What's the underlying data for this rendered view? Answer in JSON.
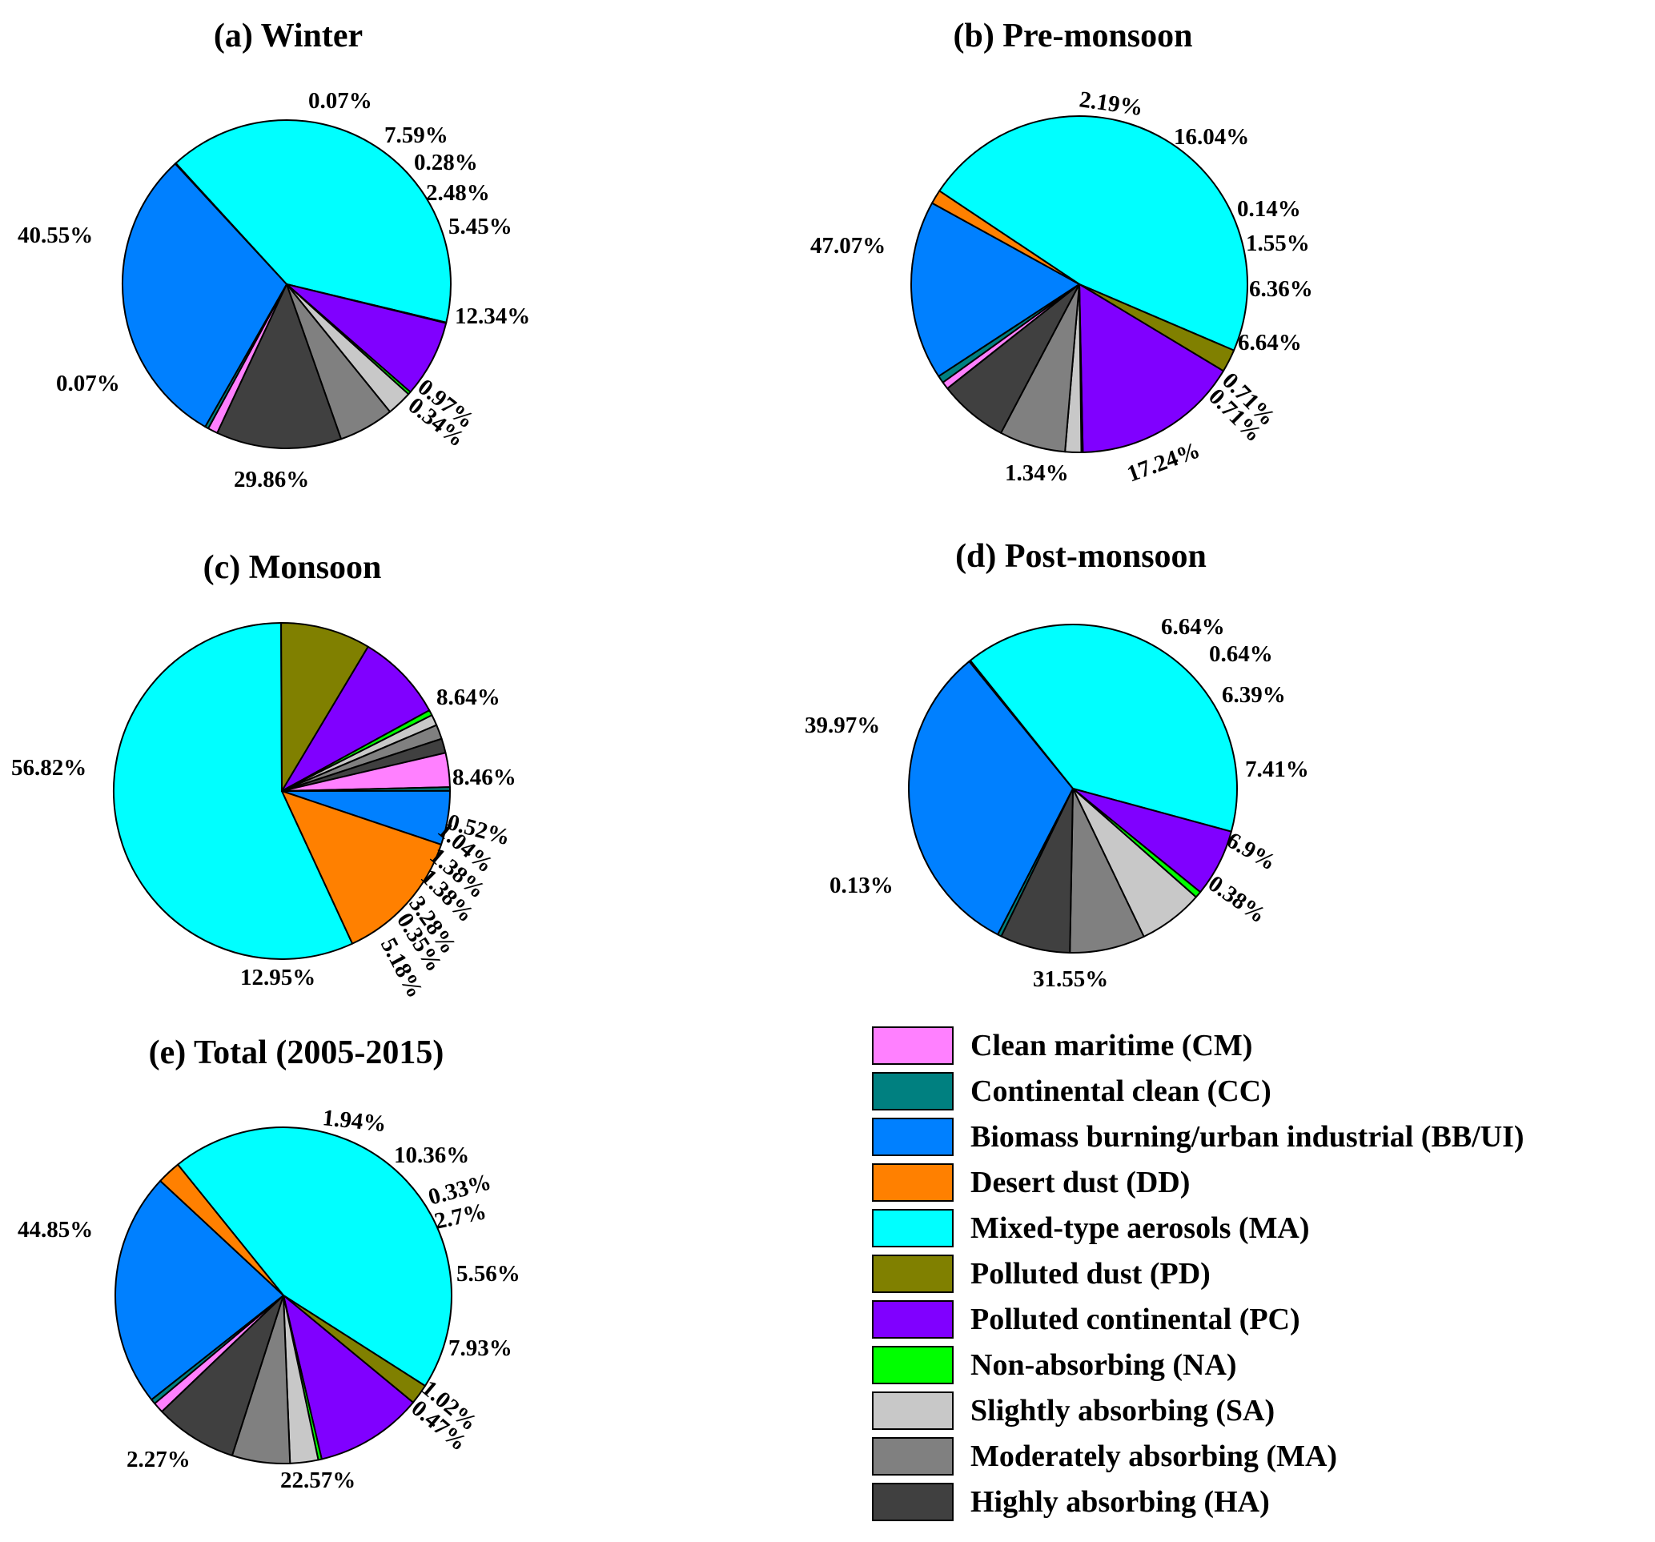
{
  "chart_data": [
    {
      "type": "pie",
      "title": "(a) Winter",
      "slices": [
        {
          "category": "MA",
          "value": 40.55,
          "label": "40.55%"
        },
        {
          "category": "PD",
          "value": 0.07,
          "label": "0.07%"
        },
        {
          "category": "PC",
          "value": 7.59,
          "label": "7.59%"
        },
        {
          "category": "NA",
          "value": 0.28,
          "label": "0.28%"
        },
        {
          "category": "SA",
          "value": 2.48,
          "label": "2.48%"
        },
        {
          "category": "MAbs",
          "value": 5.45,
          "label": "5.45%"
        },
        {
          "category": "HA",
          "value": 12.34,
          "label": "12.34%"
        },
        {
          "category": "CM",
          "value": 0.97,
          "label": "0.97%"
        },
        {
          "category": "CC",
          "value": 0.34,
          "label": "0.34%"
        },
        {
          "category": "BB",
          "value": 29.86,
          "label": "29.86%"
        },
        {
          "category": "DD",
          "value": 0.07,
          "label": "0.07%"
        }
      ]
    },
    {
      "type": "pie",
      "title": "(b) Pre-monsoon",
      "slices": [
        {
          "category": "MA",
          "value": 47.07,
          "label": "47.07%"
        },
        {
          "category": "PD",
          "value": 2.19,
          "label": "2.19%"
        },
        {
          "category": "PC",
          "value": 16.04,
          "label": "16.04%"
        },
        {
          "category": "NA",
          "value": 0.14,
          "label": "0.14%"
        },
        {
          "category": "SA",
          "value": 1.55,
          "label": "1.55%"
        },
        {
          "category": "MAbs",
          "value": 6.36,
          "label": "6.36%"
        },
        {
          "category": "HA",
          "value": 6.64,
          "label": "6.64%"
        },
        {
          "category": "CM",
          "value": 0.71,
          "label": "0.71%"
        },
        {
          "category": "CC",
          "value": 0.71,
          "label": "0.71%"
        },
        {
          "category": "BB",
          "value": 17.24,
          "label": "17.24%"
        },
        {
          "category": "DD",
          "value": 1.34,
          "label": "1.34%"
        }
      ]
    },
    {
      "type": "pie",
      "title": "(c) Monsoon",
      "slices": [
        {
          "category": "MA",
          "value": 56.82,
          "label": "56.82%"
        },
        {
          "category": "PD",
          "value": 8.64,
          "label": "8.64%"
        },
        {
          "category": "PC",
          "value": 8.46,
          "label": "8.46%"
        },
        {
          "category": "NA",
          "value": 0.52,
          "label": "0.52%"
        },
        {
          "category": "SA",
          "value": 1.04,
          "label": "1.04%"
        },
        {
          "category": "MAbs",
          "value": 1.38,
          "label": "1.38%"
        },
        {
          "category": "HA",
          "value": 1.38,
          "label": "1.38%"
        },
        {
          "category": "CM",
          "value": 3.28,
          "label": "3.28%"
        },
        {
          "category": "CC",
          "value": 0.35,
          "label": "0.35%"
        },
        {
          "category": "BB",
          "value": 5.18,
          "label": "5.18%"
        },
        {
          "category": "DD",
          "value": 12.95,
          "label": "12.95%"
        }
      ]
    },
    {
      "type": "pie",
      "title": "(d) Post-monsoon",
      "slices": [
        {
          "category": "MA",
          "value": 39.97,
          "label": "39.97%"
        },
        {
          "category": "PC",
          "value": 6.64,
          "label": "6.64%"
        },
        {
          "category": "NA",
          "value": 0.64,
          "label": "0.64%"
        },
        {
          "category": "SA",
          "value": 6.39,
          "label": "6.39%"
        },
        {
          "category": "MAbs",
          "value": 7.41,
          "label": "7.41%"
        },
        {
          "category": "HA",
          "value": 6.9,
          "label": "6.9%"
        },
        {
          "category": "CC",
          "value": 0.38,
          "label": "0.38%"
        },
        {
          "category": "BB",
          "value": 31.55,
          "label": "31.55%"
        },
        {
          "category": "DD",
          "value": 0.13,
          "label": "0.13%"
        }
      ]
    },
    {
      "type": "pie",
      "title": "(e) Total (2005-2015)",
      "slices": [
        {
          "category": "MA",
          "value": 44.85,
          "label": "44.85%"
        },
        {
          "category": "PD",
          "value": 1.94,
          "label": "1.94%"
        },
        {
          "category": "PC",
          "value": 10.36,
          "label": "10.36%"
        },
        {
          "category": "NA",
          "value": 0.33,
          "label": "0.33%"
        },
        {
          "category": "SA",
          "value": 2.7,
          "label": "2.7%"
        },
        {
          "category": "MAbs",
          "value": 5.56,
          "label": "5.56%"
        },
        {
          "category": "HA",
          "value": 7.93,
          "label": "7.93%"
        },
        {
          "category": "CM",
          "value": 1.02,
          "label": "1.02%"
        },
        {
          "category": "CC",
          "value": 0.47,
          "label": "0.47%"
        },
        {
          "category": "BB",
          "value": 22.57,
          "label": "22.57%"
        },
        {
          "category": "DD",
          "value": 2.27,
          "label": "2.27%"
        }
      ]
    }
  ],
  "legend": {
    "placement": "bottom-right",
    "items": [
      {
        "key": "CM",
        "label": "Clean maritime (CM)",
        "color": "#ff80ff"
      },
      {
        "key": "CC",
        "label": "Continental clean (CC)",
        "color": "#008080"
      },
      {
        "key": "BB",
        "label": "Biomass burning/urban industrial  (BB/UI)",
        "color": "#0080ff"
      },
      {
        "key": "DD",
        "label": "Desert dust (DD)",
        "color": "#ff8000"
      },
      {
        "key": "MA",
        "label": "Mixed-type aerosols (MA)",
        "color": "#00ffff"
      },
      {
        "key": "PD",
        "label": "Polluted dust (PD)",
        "color": "#808000"
      },
      {
        "key": "PC",
        "label": "Polluted continental (PC)",
        "color": "#8000ff"
      },
      {
        "key": "NA",
        "label": "Non-absorbing (NA)",
        "color": "#00ff00"
      },
      {
        "key": "SA",
        "label": "Slightly absorbing (SA)",
        "color": "#c8c8c8"
      },
      {
        "key": "MAbs",
        "label": "Moderately absorbing (MA)",
        "color": "#808080"
      },
      {
        "key": "HA",
        "label": "Highly absorbing (HA)",
        "color": "#404040"
      }
    ]
  }
}
